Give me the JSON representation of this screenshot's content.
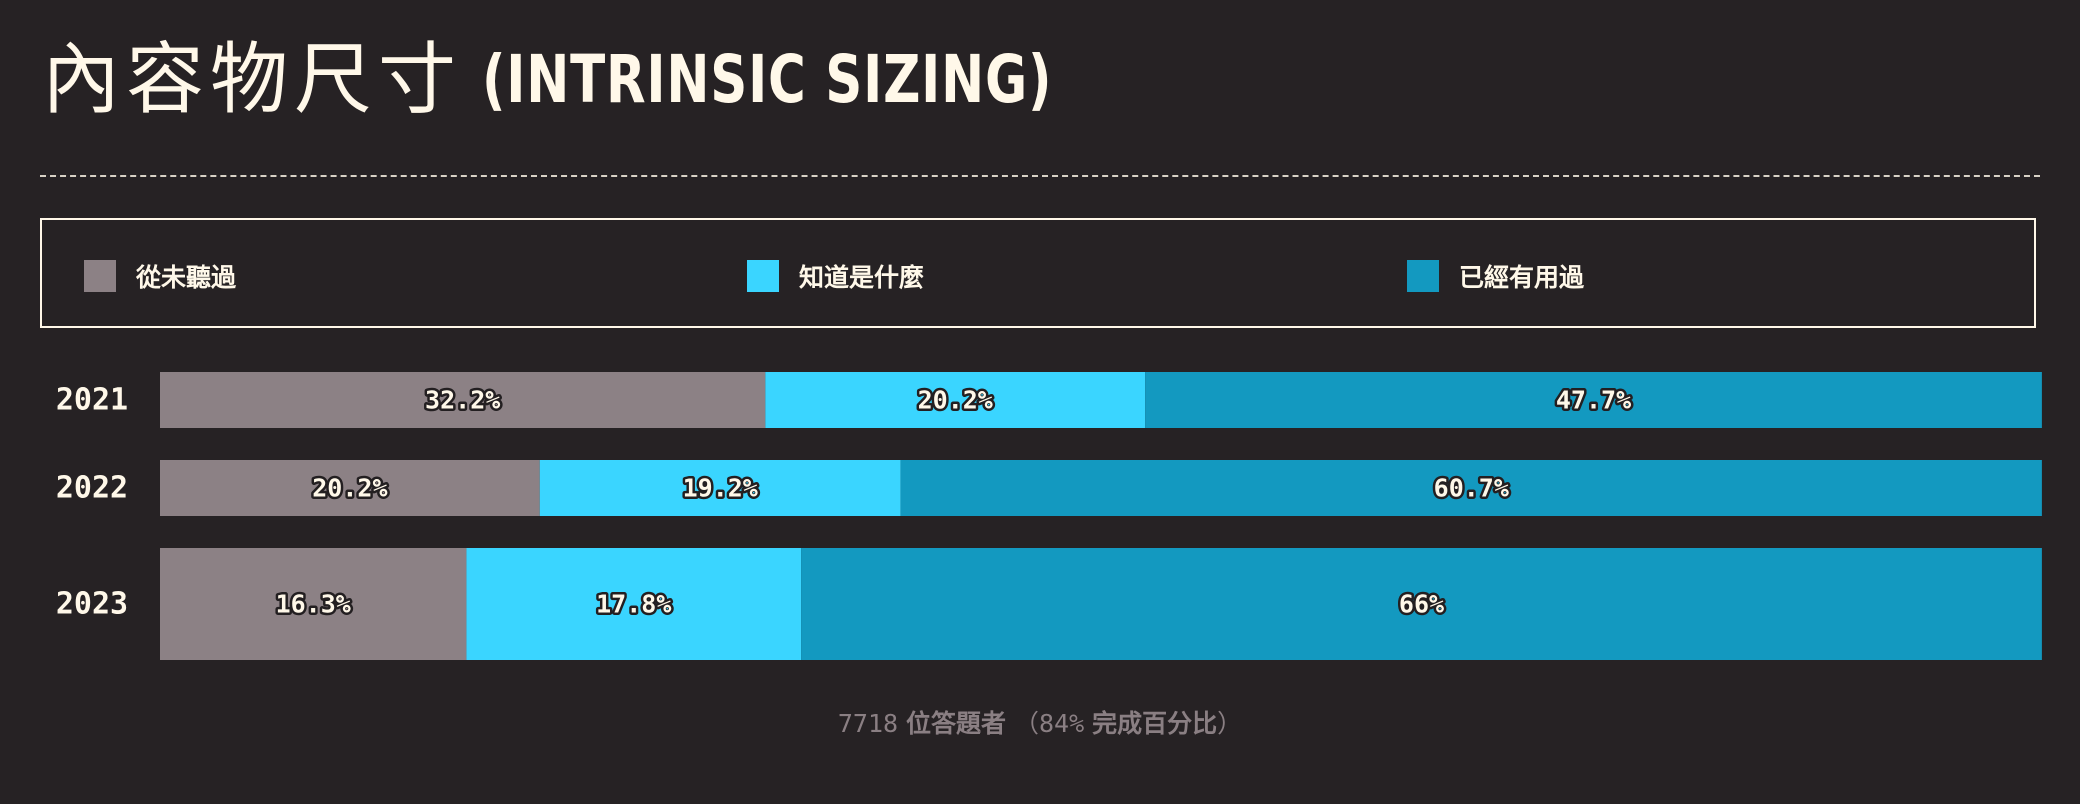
{
  "title": {
    "main": "內容物尺寸",
    "sub": "(INTRINSIC SIZING)"
  },
  "legend": [
    {
      "label": "從未聽過",
      "color": "#8c8185"
    },
    {
      "label": "知道是什麼",
      "color": "#3ad5ff"
    },
    {
      "label": "已經有用過",
      "color": "#1399c0"
    }
  ],
  "footer": {
    "count": "7718",
    "respondents": "位答題者",
    "open_paren": "（",
    "pct": "84%",
    "completion": "完成百分比",
    "close_paren": "）"
  },
  "chart_data": {
    "type": "bar",
    "orientation": "horizontal",
    "stacked": true,
    "normalized": true,
    "categories": [
      "2021",
      "2022",
      "2023"
    ],
    "series": [
      {
        "name": "從未聽過",
        "values": [
          32.2,
          20.2,
          16.3
        ],
        "labels": [
          "32.2%",
          "20.2%",
          "16.3%"
        ],
        "color": "#8c8185"
      },
      {
        "name": "知道是什麼",
        "values": [
          20.2,
          19.2,
          17.8
        ],
        "labels": [
          "20.2%",
          "19.2%",
          "17.8%"
        ],
        "color": "#3ad5ff"
      },
      {
        "name": "已經有用過",
        "values": [
          47.7,
          60.7,
          66
        ],
        "labels": [
          "47.7%",
          "60.7%",
          "66%"
        ],
        "color": "#1399c0"
      }
    ],
    "xlim": [
      0,
      100
    ],
    "legend_position": "top",
    "grid": false
  }
}
